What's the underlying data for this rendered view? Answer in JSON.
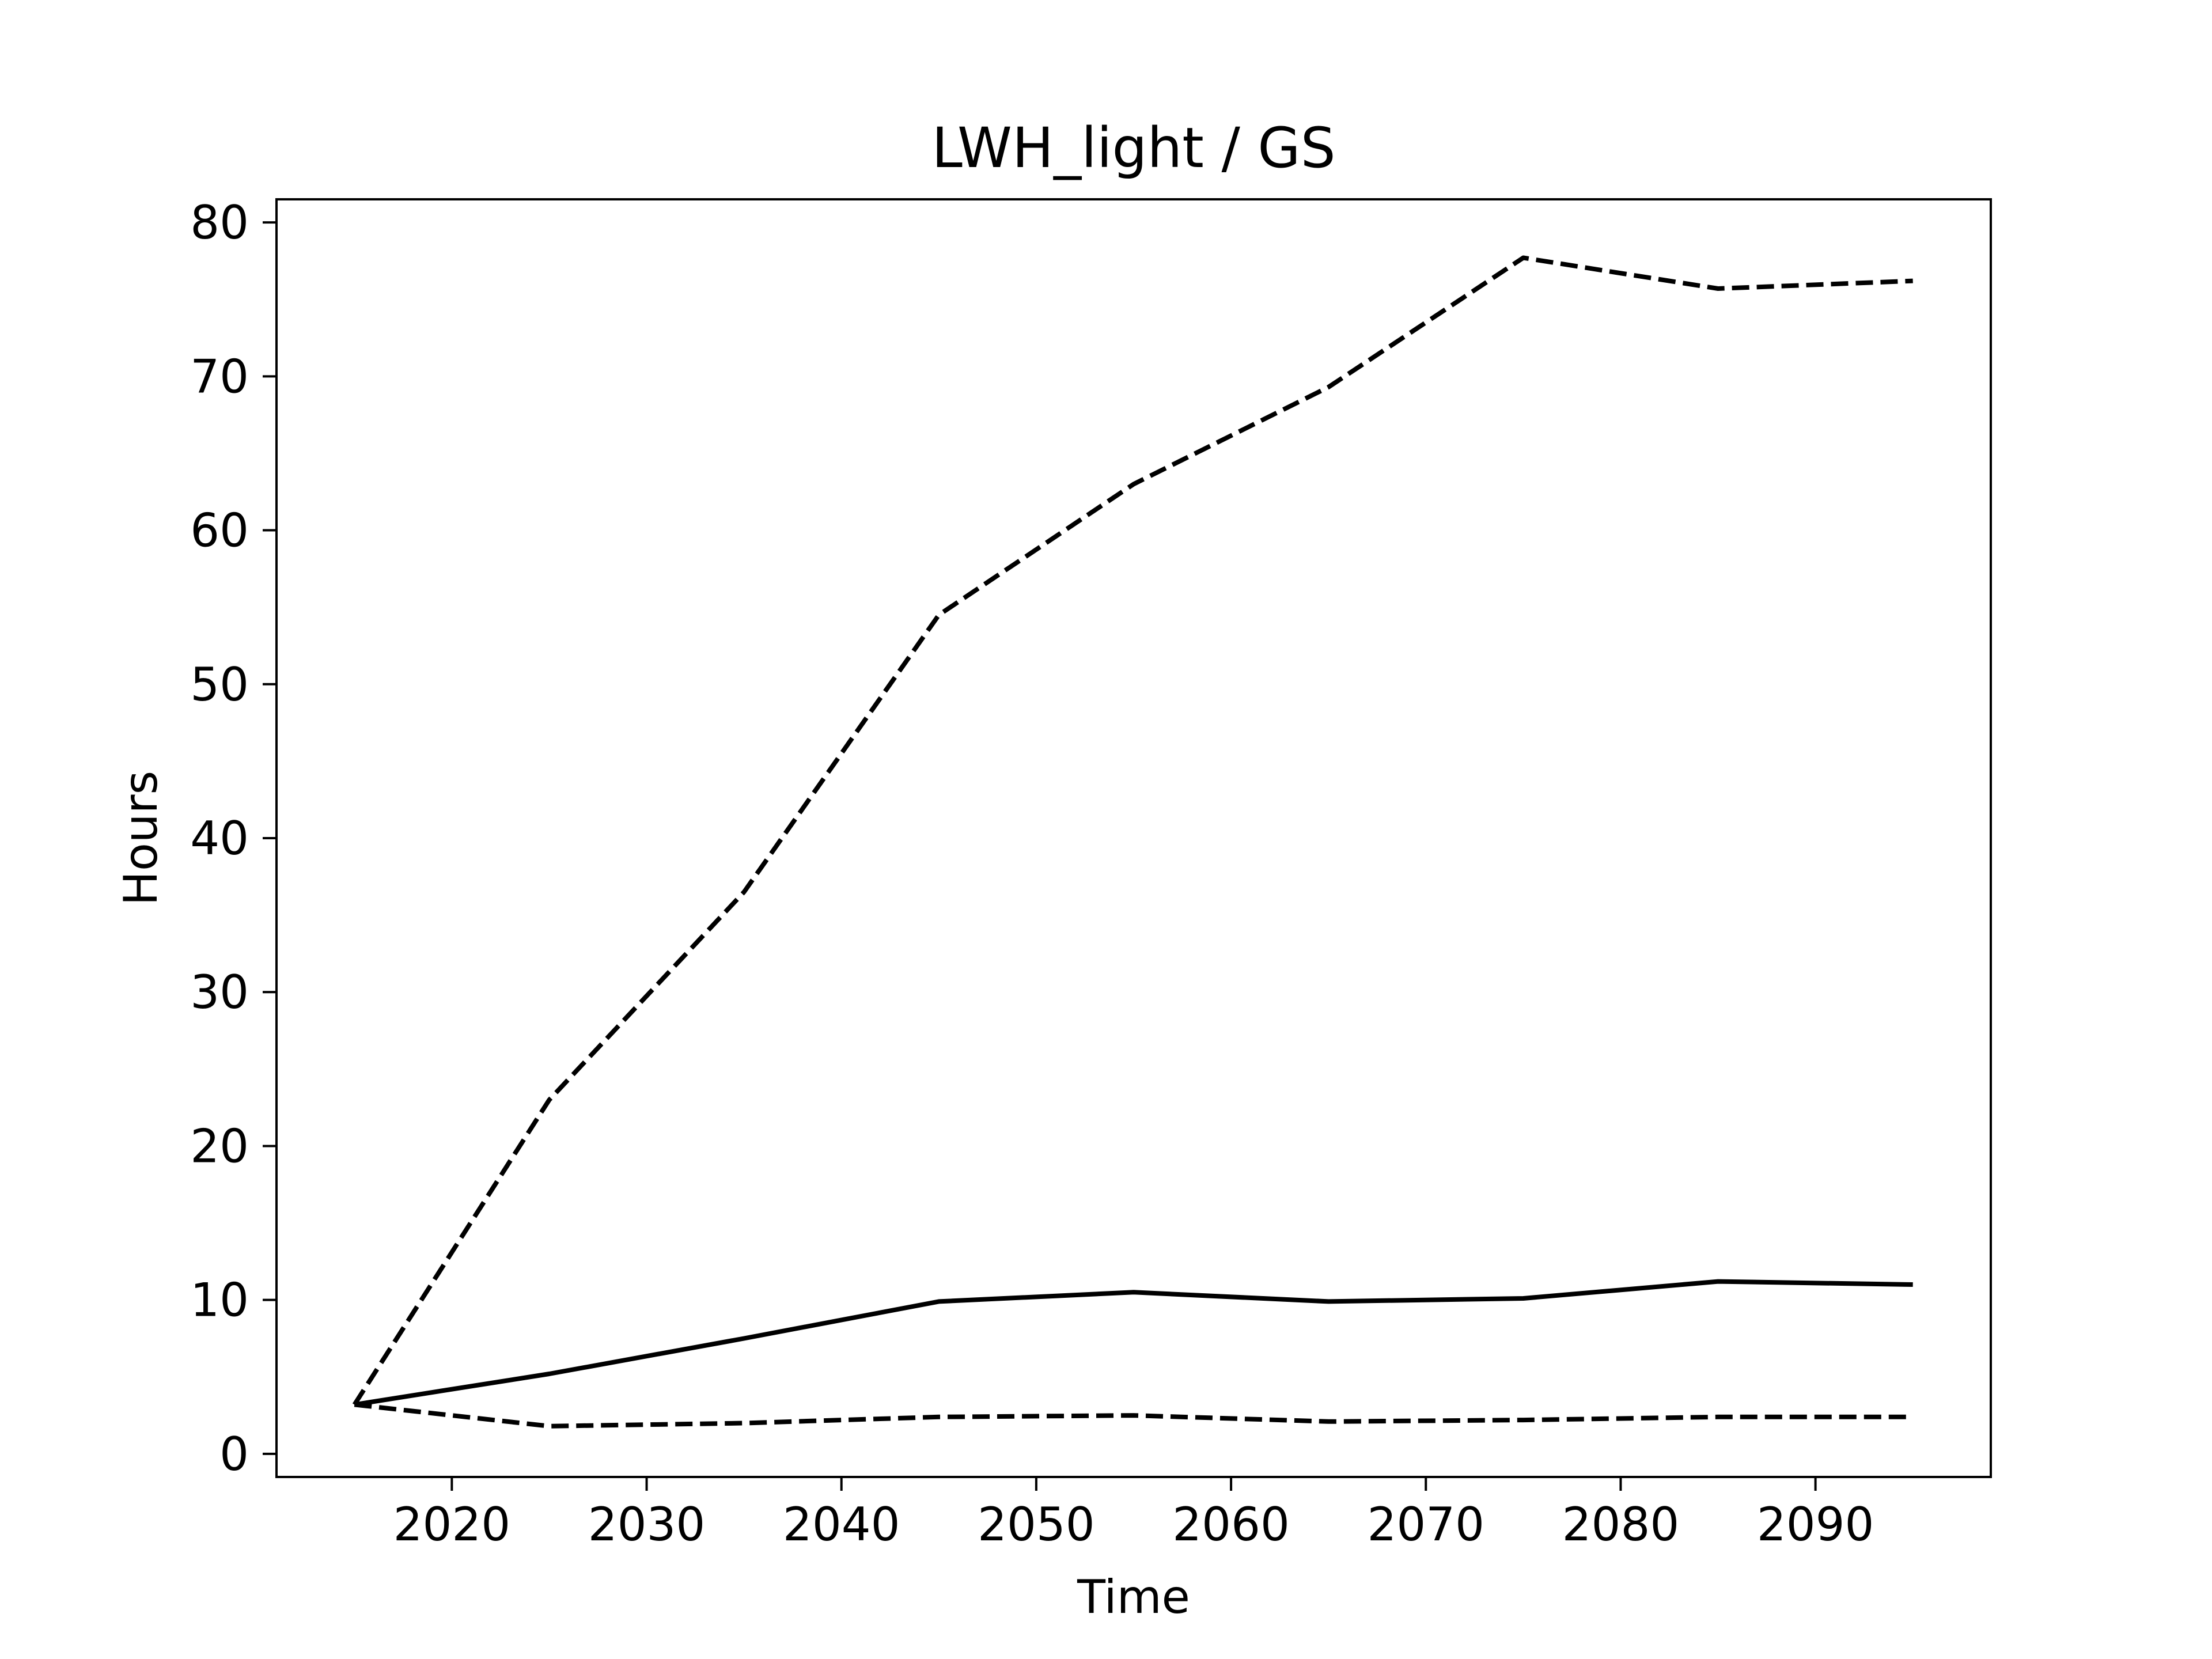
{
  "chart_data": {
    "type": "line",
    "title": "LWH_light / GS",
    "xlabel": "Time",
    "ylabel": "Hours",
    "xlim": [
      2011,
      2099
    ],
    "ylim": [
      -1.5,
      81.5
    ],
    "x_ticks": [
      2020,
      2030,
      2040,
      2050,
      2060,
      2070,
      2080,
      2090
    ],
    "y_ticks": [
      0,
      10,
      20,
      30,
      40,
      50,
      60,
      70,
      80
    ],
    "grid": false,
    "legend": "none",
    "line_color": "#000000",
    "x": [
      2015,
      2025,
      2035,
      2045,
      2055,
      2065,
      2075,
      2085,
      2095
    ],
    "series": [
      {
        "style": "dashed",
        "values": [
          3.2,
          23.0,
          36.5,
          54.5,
          63.0,
          69.3,
          77.7,
          75.7,
          76.2
        ]
      },
      {
        "style": "solid",
        "values": [
          3.2,
          5.2,
          7.5,
          9.9,
          10.5,
          9.9,
          10.1,
          11.2,
          11.0
        ]
      },
      {
        "style": "dashed",
        "values": [
          3.2,
          1.8,
          2.0,
          2.4,
          2.5,
          2.1,
          2.2,
          2.4,
          2.4
        ]
      }
    ]
  }
}
